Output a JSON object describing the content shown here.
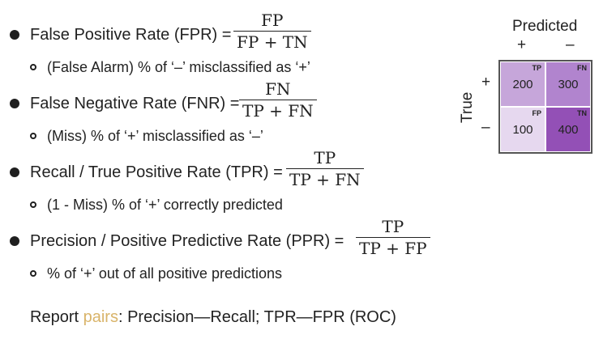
{
  "bullets": [
    {
      "label": "False Positive Rate (FPR) =",
      "numerator": "FP",
      "denominator": "FP + TN",
      "sub": "(False Alarm) % of ‘–’ misclassified as ‘+’"
    },
    {
      "label": "False Negative Rate (FNR) =",
      "numerator": "FN",
      "denominator": "TP + FN",
      "sub": "(Miss) % of ‘+’ misclassified as ‘–’"
    },
    {
      "label": "Recall / True Positive Rate (TPR) =",
      "numerator": "TP",
      "denominator": "TP + FN",
      "sub": "(1 - Miss) % of ‘+’ correctly predicted"
    },
    {
      "label": "Precision / Positive Predictive Rate (PPR) =",
      "numerator": "TP",
      "denominator": "TP + FP",
      "sub": "% of ‘+’ out of all positive predictions"
    }
  ],
  "report": {
    "prefix": "Report ",
    "highlight": "pairs",
    "suffix": ": Precision—Recall; TPR—FPR (ROC)"
  },
  "matrix": {
    "title": "Predicted",
    "pred_plus": "+",
    "pred_minus": "–",
    "true_label": "True",
    "true_plus": "+",
    "true_minus": "–",
    "cells": [
      {
        "tag": "TP",
        "value": "200",
        "color": "#c6a6da",
        "text_color": "#222222"
      },
      {
        "tag": "FN",
        "value": "300",
        "color": "#b184ce",
        "text_color": "#222222"
      },
      {
        "tag": "FP",
        "value": "100",
        "color": "#e6d8ef",
        "text_color": "#222222"
      },
      {
        "tag": "TN",
        "value": "400",
        "color": "#9350b6",
        "text_color": "#222222"
      }
    ]
  },
  "colors": {
    "highlight": "#d9b46a",
    "frame": "#555555"
  }
}
